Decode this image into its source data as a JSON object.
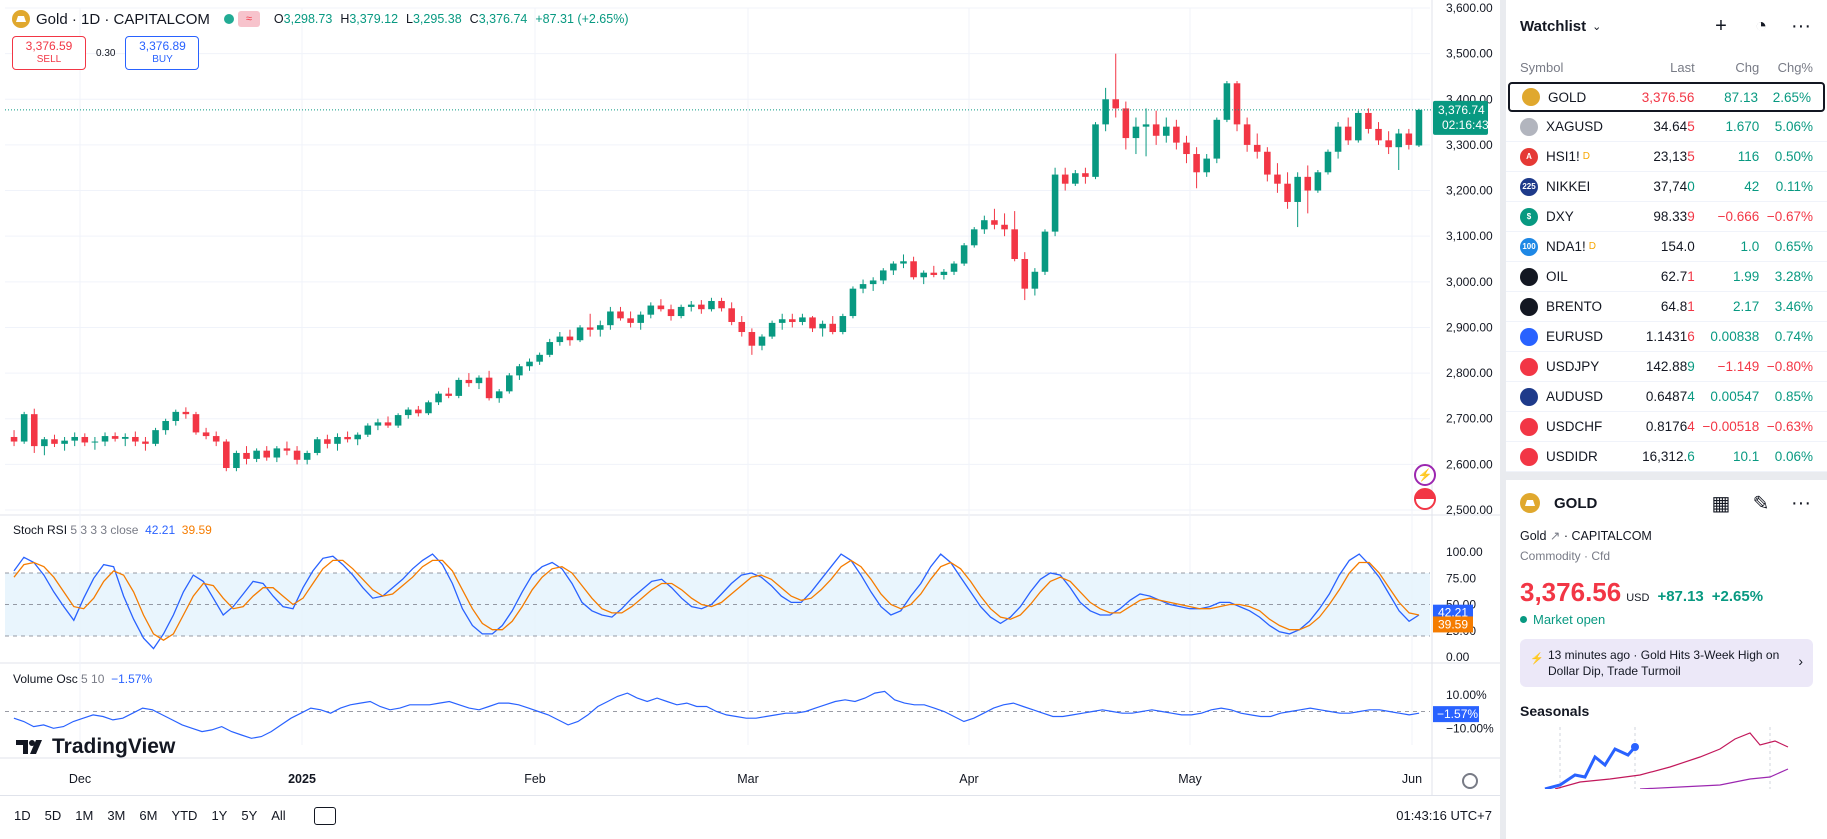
{
  "header": {
    "title": "Gold · 1D · CAPITALCOM",
    "ohlc": {
      "o": "3,298.73",
      "h": "3,379.12",
      "l": "3,295.38",
      "c": "3,376.74",
      "chg": "+87.31 (+2.65%)"
    },
    "sell_price": "3,376.59",
    "sell_label": "SELL",
    "spread": "0.30",
    "buy_price": "3,376.89",
    "buy_label": "BUY",
    "status_icon": "market-open-dot"
  },
  "price_axis": {
    "ticks": [
      "3,600.00",
      "3,500.00",
      "3,400.00",
      "3,300.00",
      "3,200.00",
      "3,100.00",
      "3,000.00",
      "2,900.00",
      "2,800.00",
      "2,700.00",
      "2,600.00",
      "2,500.00"
    ],
    "last_price": "3,376.74",
    "countdown": "02:16:43"
  },
  "time_axis": {
    "labels": [
      "Dec",
      "2025",
      "Feb",
      "Mar",
      "Apr",
      "May",
      "Jun"
    ]
  },
  "stoch_rsi": {
    "name": "Stoch RSI",
    "params": "5 3 3 3 close",
    "k": "42.21",
    "d": "39.59",
    "ticks": [
      "100.00",
      "75.00",
      "50.00",
      "25.00",
      "0.00"
    ],
    "k_values": [
      82,
      95,
      90,
      78,
      62,
      48,
      35,
      56,
      75,
      88,
      86,
      58,
      36,
      18,
      8,
      22,
      40,
      62,
      78,
      72,
      56,
      40,
      48,
      60,
      72,
      70,
      58,
      48,
      46,
      66,
      82,
      94,
      96,
      88,
      78,
      66,
      56,
      58,
      66,
      74,
      84,
      92,
      98,
      88,
      70,
      46,
      30,
      22,
      22,
      30,
      44,
      62,
      78,
      86,
      90,
      84,
      70,
      52,
      44,
      40,
      38,
      46,
      56,
      64,
      72,
      74,
      66,
      56,
      48,
      46,
      50,
      60,
      70,
      78,
      80,
      76,
      68,
      58,
      52,
      52,
      62,
      74,
      86,
      98,
      92,
      78,
      62,
      48,
      40,
      44,
      58,
      70,
      86,
      98,
      90,
      76,
      62,
      48,
      38,
      32,
      38,
      48,
      62,
      74,
      80,
      78,
      66,
      52,
      44,
      40,
      40,
      46,
      54,
      60,
      58,
      54,
      50,
      48,
      46,
      46,
      48,
      52,
      52,
      48,
      44,
      38,
      30,
      24,
      22,
      26,
      34,
      46,
      60,
      78,
      92,
      98,
      88,
      76,
      60,
      44,
      34,
      40
    ],
    "d_values": [
      76,
      88,
      90,
      86,
      76,
      62,
      48,
      46,
      56,
      72,
      82,
      78,
      62,
      40,
      22,
      16,
      22,
      40,
      58,
      70,
      68,
      56,
      46,
      48,
      58,
      66,
      66,
      58,
      50,
      56,
      70,
      84,
      92,
      92,
      84,
      74,
      64,
      58,
      60,
      68,
      76,
      86,
      92,
      92,
      82,
      64,
      46,
      32,
      26,
      26,
      34,
      48,
      64,
      76,
      84,
      86,
      80,
      68,
      56,
      46,
      42,
      42,
      48,
      56,
      64,
      70,
      70,
      64,
      56,
      50,
      48,
      52,
      60,
      68,
      76,
      78,
      74,
      66,
      58,
      54,
      56,
      64,
      74,
      86,
      92,
      86,
      74,
      60,
      50,
      46,
      50,
      60,
      74,
      86,
      90,
      84,
      72,
      58,
      46,
      38,
      36,
      40,
      50,
      62,
      72,
      76,
      72,
      62,
      52,
      46,
      42,
      42,
      48,
      54,
      56,
      54,
      52,
      50,
      48,
      46,
      46,
      48,
      50,
      50,
      48,
      44,
      36,
      30,
      26,
      26,
      30,
      38,
      50,
      64,
      80,
      90,
      90,
      80,
      66,
      52,
      42,
      40
    ]
  },
  "volume_osc": {
    "name": "Volume Osc",
    "params": "5 10",
    "value": "−1.57%",
    "ticks": [
      "10.00%",
      "−10.00%"
    ],
    "values": [
      -4,
      -6,
      -9,
      -8,
      -10,
      -9,
      -6,
      -4,
      -2,
      -3,
      -5,
      -4,
      -1,
      2,
      1,
      -2,
      -5,
      -8,
      -10,
      -12,
      -11,
      -9,
      -12,
      -14,
      -16,
      -15,
      -12,
      -8,
      -4,
      -1,
      2,
      1,
      -1,
      2,
      4,
      5,
      6,
      3,
      1,
      2,
      4,
      4,
      4,
      5,
      6,
      4,
      2,
      1,
      3,
      5,
      5,
      4,
      2,
      0,
      -2,
      -5,
      -8,
      -6,
      -2,
      3,
      6,
      9,
      11,
      8,
      6,
      8,
      6,
      4,
      5,
      3,
      3,
      0,
      -2,
      -3,
      -4,
      -4,
      -3,
      -2,
      -1,
      -1,
      0,
      2,
      4,
      6,
      7,
      6,
      8,
      11,
      12,
      7,
      5,
      4,
      4,
      2,
      0,
      -3,
      -6,
      -4,
      -1,
      2,
      4,
      5,
      3,
      1,
      -1,
      -3,
      -3,
      -2,
      -1,
      0,
      1,
      0,
      -1,
      -1,
      0,
      1,
      0,
      -1,
      -2,
      -2,
      -1,
      1,
      2,
      1,
      -1,
      -2,
      -3,
      -3,
      -1,
      0,
      1,
      2,
      1,
      0,
      -1,
      -1,
      0,
      1,
      1,
      0,
      -1,
      -2,
      -1
    ],
    "ylim": [
      -20,
      20
    ]
  },
  "chart_data": {
    "type": "candlestick",
    "symbol": "Gold",
    "ylim": [
      2500,
      3600
    ],
    "ohlc": [
      [
        2660,
        2675,
        2640,
        2650
      ],
      [
        2650,
        2715,
        2645,
        2710
      ],
      [
        2710,
        2722,
        2625,
        2640
      ],
      [
        2640,
        2660,
        2620,
        2655
      ],
      [
        2655,
        2665,
        2638,
        2645
      ],
      [
        2645,
        2660,
        2630,
        2652
      ],
      [
        2652,
        2670,
        2640,
        2660
      ],
      [
        2660,
        2668,
        2640,
        2648
      ],
      [
        2648,
        2660,
        2632,
        2650
      ],
      [
        2650,
        2670,
        2640,
        2662
      ],
      [
        2662,
        2670,
        2650,
        2656
      ],
      [
        2656,
        2668,
        2640,
        2660
      ],
      [
        2660,
        2672,
        2640,
        2650
      ],
      [
        2650,
        2660,
        2630,
        2645
      ],
      [
        2645,
        2680,
        2640,
        2675
      ],
      [
        2675,
        2700,
        2665,
        2695
      ],
      [
        2695,
        2720,
        2685,
        2715
      ],
      [
        2715,
        2725,
        2700,
        2710
      ],
      [
        2710,
        2715,
        2665,
        2670
      ],
      [
        2670,
        2680,
        2655,
        2662
      ],
      [
        2662,
        2672,
        2640,
        2650
      ],
      [
        2650,
        2655,
        2585,
        2592
      ],
      [
        2592,
        2630,
        2585,
        2625
      ],
      [
        2625,
        2640,
        2600,
        2612
      ],
      [
        2612,
        2635,
        2605,
        2630
      ],
      [
        2630,
        2640,
        2608,
        2615
      ],
      [
        2615,
        2640,
        2605,
        2635
      ],
      [
        2635,
        2650,
        2620,
        2630
      ],
      [
        2630,
        2640,
        2600,
        2610
      ],
      [
        2610,
        2630,
        2600,
        2625
      ],
      [
        2625,
        2660,
        2620,
        2655
      ],
      [
        2655,
        2665,
        2635,
        2645
      ],
      [
        2645,
        2668,
        2630,
        2660
      ],
      [
        2660,
        2672,
        2648,
        2655
      ],
      [
        2655,
        2670,
        2642,
        2665
      ],
      [
        2665,
        2690,
        2660,
        2685
      ],
      [
        2685,
        2700,
        2675,
        2692
      ],
      [
        2692,
        2705,
        2680,
        2685
      ],
      [
        2685,
        2712,
        2680,
        2708
      ],
      [
        2708,
        2725,
        2700,
        2720
      ],
      [
        2720,
        2728,
        2705,
        2712
      ],
      [
        2712,
        2740,
        2708,
        2736
      ],
      [
        2736,
        2760,
        2730,
        2755
      ],
      [
        2755,
        2768,
        2745,
        2750
      ],
      [
        2750,
        2790,
        2745,
        2785
      ],
      [
        2785,
        2800,
        2770,
        2778
      ],
      [
        2778,
        2795,
        2765,
        2790
      ],
      [
        2790,
        2805,
        2740,
        2745
      ],
      [
        2745,
        2765,
        2735,
        2760
      ],
      [
        2760,
        2800,
        2755,
        2795
      ],
      [
        2795,
        2820,
        2785,
        2815
      ],
      [
        2815,
        2832,
        2805,
        2825
      ],
      [
        2825,
        2845,
        2818,
        2840
      ],
      [
        2840,
        2875,
        2835,
        2868
      ],
      [
        2868,
        2890,
        2860,
        2880
      ],
      [
        2880,
        2895,
        2860,
        2872
      ],
      [
        2872,
        2905,
        2868,
        2900
      ],
      [
        2900,
        2930,
        2880,
        2895
      ],
      [
        2895,
        2915,
        2880,
        2905
      ],
      [
        2905,
        2945,
        2895,
        2935
      ],
      [
        2935,
        2945,
        2915,
        2920
      ],
      [
        2920,
        2935,
        2900,
        2910
      ],
      [
        2910,
        2935,
        2895,
        2928
      ],
      [
        2928,
        2955,
        2920,
        2948
      ],
      [
        2948,
        2962,
        2935,
        2940
      ],
      [
        2940,
        2950,
        2915,
        2925
      ],
      [
        2925,
        2950,
        2920,
        2945
      ],
      [
        2945,
        2958,
        2935,
        2950
      ],
      [
        2950,
        2960,
        2930,
        2940
      ],
      [
        2940,
        2965,
        2935,
        2958
      ],
      [
        2958,
        2965,
        2935,
        2942
      ],
      [
        2942,
        2955,
        2905,
        2912
      ],
      [
        2912,
        2925,
        2880,
        2890
      ],
      [
        2890,
        2898,
        2840,
        2860
      ],
      [
        2860,
        2885,
        2850,
        2880
      ],
      [
        2880,
        2915,
        2875,
        2910
      ],
      [
        2910,
        2930,
        2895,
        2918
      ],
      [
        2918,
        2930,
        2900,
        2912
      ],
      [
        2912,
        2930,
        2905,
        2922
      ],
      [
        2922,
        2925,
        2890,
        2898
      ],
      [
        2898,
        2915,
        2880,
        2908
      ],
      [
        2908,
        2925,
        2885,
        2890
      ],
      [
        2890,
        2930,
        2885,
        2925
      ],
      [
        2925,
        2990,
        2920,
        2985
      ],
      [
        2985,
        3005,
        2975,
        2995
      ],
      [
        2995,
        3010,
        2980,
        3003
      ],
      [
        3003,
        3030,
        2995,
        3025
      ],
      [
        3025,
        3045,
        3015,
        3040
      ],
      [
        3040,
        3060,
        3030,
        3045
      ],
      [
        3045,
        3055,
        3005,
        3010
      ],
      [
        3010,
        3025,
        2995,
        3020
      ],
      [
        3020,
        3035,
        3010,
        3015
      ],
      [
        3015,
        3028,
        3005,
        3022
      ],
      [
        3022,
        3045,
        3015,
        3040
      ],
      [
        3040,
        3085,
        3035,
        3080
      ],
      [
        3080,
        3120,
        3075,
        3115
      ],
      [
        3115,
        3145,
        3105,
        3135
      ],
      [
        3135,
        3160,
        3115,
        3125
      ],
      [
        3125,
        3150,
        3100,
        3115
      ],
      [
        3115,
        3155,
        3045,
        3050
      ],
      [
        3050,
        3065,
        2960,
        2985
      ],
      [
        2985,
        3030,
        2970,
        3022
      ],
      [
        3022,
        3115,
        3015,
        3110
      ],
      [
        3110,
        3250,
        3100,
        3235
      ],
      [
        3235,
        3250,
        3200,
        3215
      ],
      [
        3215,
        3245,
        3210,
        3238
      ],
      [
        3238,
        3250,
        3215,
        3230
      ],
      [
        3230,
        3350,
        3225,
        3345
      ],
      [
        3345,
        3425,
        3330,
        3400
      ],
      [
        3400,
        3500,
        3360,
        3380
      ],
      [
        3380,
        3395,
        3290,
        3315
      ],
      [
        3315,
        3360,
        3280,
        3340
      ],
      [
        3340,
        3380,
        3275,
        3345
      ],
      [
        3345,
        3375,
        3300,
        3320
      ],
      [
        3320,
        3360,
        3305,
        3340
      ],
      [
        3340,
        3355,
        3290,
        3305
      ],
      [
        3305,
        3320,
        3260,
        3280
      ],
      [
        3280,
        3295,
        3205,
        3240
      ],
      [
        3240,
        3280,
        3230,
        3270
      ],
      [
        3270,
        3360,
        3260,
        3355
      ],
      [
        3355,
        3440,
        3350,
        3435
      ],
      [
        3435,
        3440,
        3330,
        3345
      ],
      [
        3345,
        3360,
        3285,
        3300
      ],
      [
        3300,
        3325,
        3270,
        3285
      ],
      [
        3285,
        3295,
        3220,
        3235
      ],
      [
        3235,
        3260,
        3195,
        3215
      ],
      [
        3215,
        3240,
        3160,
        3175
      ],
      [
        3175,
        3240,
        3120,
        3230
      ],
      [
        3230,
        3255,
        3150,
        3200
      ],
      [
        3200,
        3245,
        3195,
        3240
      ],
      [
        3240,
        3290,
        3235,
        3285
      ],
      [
        3285,
        3350,
        3270,
        3340
      ],
      [
        3340,
        3360,
        3300,
        3310
      ],
      [
        3310,
        3375,
        3305,
        3370
      ],
      [
        3370,
        3380,
        3325,
        3335
      ],
      [
        3335,
        3350,
        3300,
        3310
      ],
      [
        3310,
        3330,
        3280,
        3295
      ],
      [
        3295,
        3335,
        3245,
        3325
      ],
      [
        3325,
        3335,
        3290,
        3300
      ],
      [
        3298.73,
        3379.12,
        3295.38,
        3376.74
      ]
    ]
  },
  "bottom_bar": {
    "timeframes": [
      "1D",
      "5D",
      "1M",
      "3M",
      "6M",
      "YTD",
      "1Y",
      "5Y",
      "All"
    ],
    "clock": "01:43:16 UTC+7"
  },
  "brand": {
    "name": "TradingView"
  },
  "watchlist": {
    "title": "Watchlist",
    "columns": {
      "symbol": "Symbol",
      "last": "Last",
      "chg": "Chg",
      "pct": "Chg%"
    },
    "rows": [
      {
        "sym": "GOLD",
        "last": "3,376.56",
        "chg": "87.13",
        "pct": "2.65%",
        "dir": "neg",
        "logo": "#e0a82e",
        "glyph": ""
      },
      {
        "sym": "XAGUSD",
        "last": "34.645",
        "chg": "1.670",
        "pct": "5.06%",
        "dir": "neg",
        "logo": "#b2b5be",
        "glyph": ""
      },
      {
        "sym": "HSI1!",
        "last": "23,135",
        "chg": "116",
        "pct": "0.50%",
        "dir": "neg",
        "logo": "#e53935",
        "glyph": "A",
        "badge": "D"
      },
      {
        "sym": "NIKKEI",
        "last": "37,740",
        "chg": "42",
        "pct": "0.11%",
        "dir": "pos",
        "logo": "#1e3a8a",
        "glyph": "225"
      },
      {
        "sym": "DXY",
        "last": "98.339",
        "chg": "−0.666",
        "pct": "−0.67%",
        "dir": "neg",
        "logo": "#089981",
        "glyph": "$"
      },
      {
        "sym": "NDA1!",
        "last": "154.0",
        "chg": "1.0",
        "pct": "0.65%",
        "dir": "none",
        "logo": "#1e88e5",
        "glyph": "100",
        "badge": "D"
      },
      {
        "sym": "OIL",
        "last": "62.71",
        "chg": "1.99",
        "pct": "3.28%",
        "dir": "neg",
        "logo": "#131722",
        "glyph": ""
      },
      {
        "sym": "BRENTO",
        "last": "64.81",
        "chg": "2.17",
        "pct": "3.46%",
        "dir": "neg",
        "logo": "#131722",
        "glyph": ""
      },
      {
        "sym": "EURUSD",
        "last": "1.14316",
        "chg": "0.00838",
        "pct": "0.74%",
        "dir": "neg",
        "logo": "#2962ff",
        "glyph": ""
      },
      {
        "sym": "USDJPY",
        "last": "142.889",
        "chg": "−1.149",
        "pct": "−0.80%",
        "dir": "pos",
        "logo": "#f23645",
        "glyph": ""
      },
      {
        "sym": "AUDUSD",
        "last": "0.64874",
        "chg": "0.00547",
        "pct": "0.85%",
        "dir": "pos",
        "logo": "#1e3a8a",
        "glyph": ""
      },
      {
        "sym": "USDCHF",
        "last": "0.81764",
        "chg": "−0.00518",
        "pct": "−0.63%",
        "dir": "neg",
        "logo": "#f23645",
        "glyph": ""
      },
      {
        "sym": "USDIDR",
        "last": "16,312.6",
        "chg": "10.1",
        "pct": "0.06%",
        "dir": "pos",
        "logo": "#f23645",
        "glyph": ""
      }
    ]
  },
  "details": {
    "name": "GOLD",
    "desc": "Gold",
    "exchange": "· CAPITALCOM",
    "category": "Commodity · Cfd",
    "price": "3,376.56",
    "currency": "USD",
    "chg": "+87.13",
    "pct": "+2.65%",
    "market_status": "Market open",
    "news_time": "13 minutes ago",
    "news_headline": "Gold Hits 3-Week High on Dollar Dip, Trade Turmoil",
    "seasonals_title": "Seasonals"
  },
  "colors": {
    "up": "#089981",
    "down": "#f23645",
    "accent": "#2962ff",
    "stoch_d": "#f57c00"
  }
}
